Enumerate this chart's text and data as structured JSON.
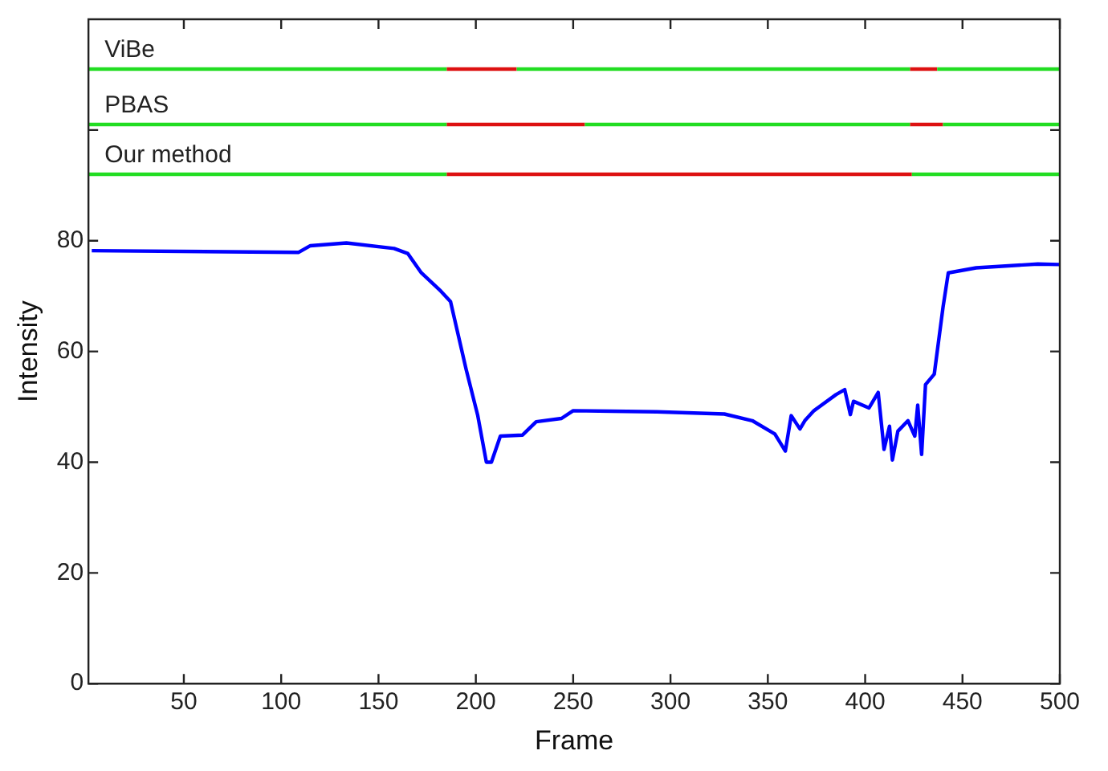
{
  "chart_data": {
    "type": "line",
    "xlabel": "Frame",
    "ylabel": "Intensity",
    "xlim": [
      1,
      500
    ],
    "ylim": [
      0,
      120
    ],
    "xticks": [
      50,
      100,
      150,
      200,
      250,
      300,
      350,
      400,
      450,
      500
    ],
    "yticks": [
      0,
      20,
      40,
      60,
      80,
      {
        "value": 100,
        "label": null
      }
    ],
    "legend": false,
    "grid": false,
    "marker": "none",
    "line_style": "solid",
    "series": [
      {
        "color": "#0000ff",
        "x": [
          2.7,
          109,
          115,
          133.5,
          158,
          165,
          172,
          182,
          187,
          195,
          201,
          205.4,
          208,
          212.6,
          224,
          231,
          244,
          250,
          270,
          293,
          327.7,
          342,
          353.6,
          359,
          362,
          366.5,
          369,
          373.7,
          385,
          389.5,
          392.4,
          394,
          402,
          406.7,
          409.7,
          412.5,
          414,
          416.8,
          422,
          425.5,
          427,
          429,
          431,
          435.5,
          440,
          442.7,
          457,
          488.7,
          500
        ],
        "values": [
          78.2,
          77.9,
          79.1,
          79.6,
          78.6,
          77.7,
          74.2,
          70.9,
          69,
          56.8,
          48.4,
          40,
          40,
          44.7,
          44.9,
          47.3,
          47.9,
          49.3,
          49.2,
          49.1,
          48.7,
          47.5,
          45.1,
          42,
          48.4,
          46,
          47.5,
          49.3,
          52.2,
          53.1,
          48.6,
          51,
          49.8,
          52.6,
          42.3,
          46.5,
          40.4,
          45.6,
          47.5,
          44.7,
          50.3,
          41.4,
          54,
          55.9,
          68,
          74.2,
          75.1,
          75.8,
          75.7
        ]
      },
      {
        "name": "ViBe",
        "color": "#22dd22",
        "x": [
          1,
          185,
          186,
          221,
          423,
          424,
          437,
          500
        ],
        "values": [
          111,
          111,
          null,
          111,
          111,
          null,
          111,
          111
        ]
      },
      {
        "color": "#dd1111",
        "x": [
          185,
          221,
          222,
          423,
          437
        ],
        "values": [
          111,
          111,
          null,
          111,
          111
        ]
      },
      {
        "name": "PBAS",
        "color": "#22dd22",
        "x": [
          1,
          185,
          186,
          256,
          423,
          424,
          440,
          500
        ],
        "values": [
          101,
          101,
          null,
          101,
          101,
          null,
          101,
          101
        ]
      },
      {
        "color": "#dd1111",
        "x": [
          185,
          256,
          257,
          423,
          440
        ],
        "values": [
          101,
          101,
          null,
          101,
          101
        ]
      },
      {
        "name": "Our method",
        "color": "#22dd22",
        "x": [
          1,
          185,
          186,
          424,
          500
        ],
        "values": [
          92,
          92,
          null,
          92,
          92
        ]
      },
      {
        "color": "#dd1111",
        "x": [
          185,
          424
        ],
        "values": [
          92,
          92
        ]
      }
    ]
  }
}
